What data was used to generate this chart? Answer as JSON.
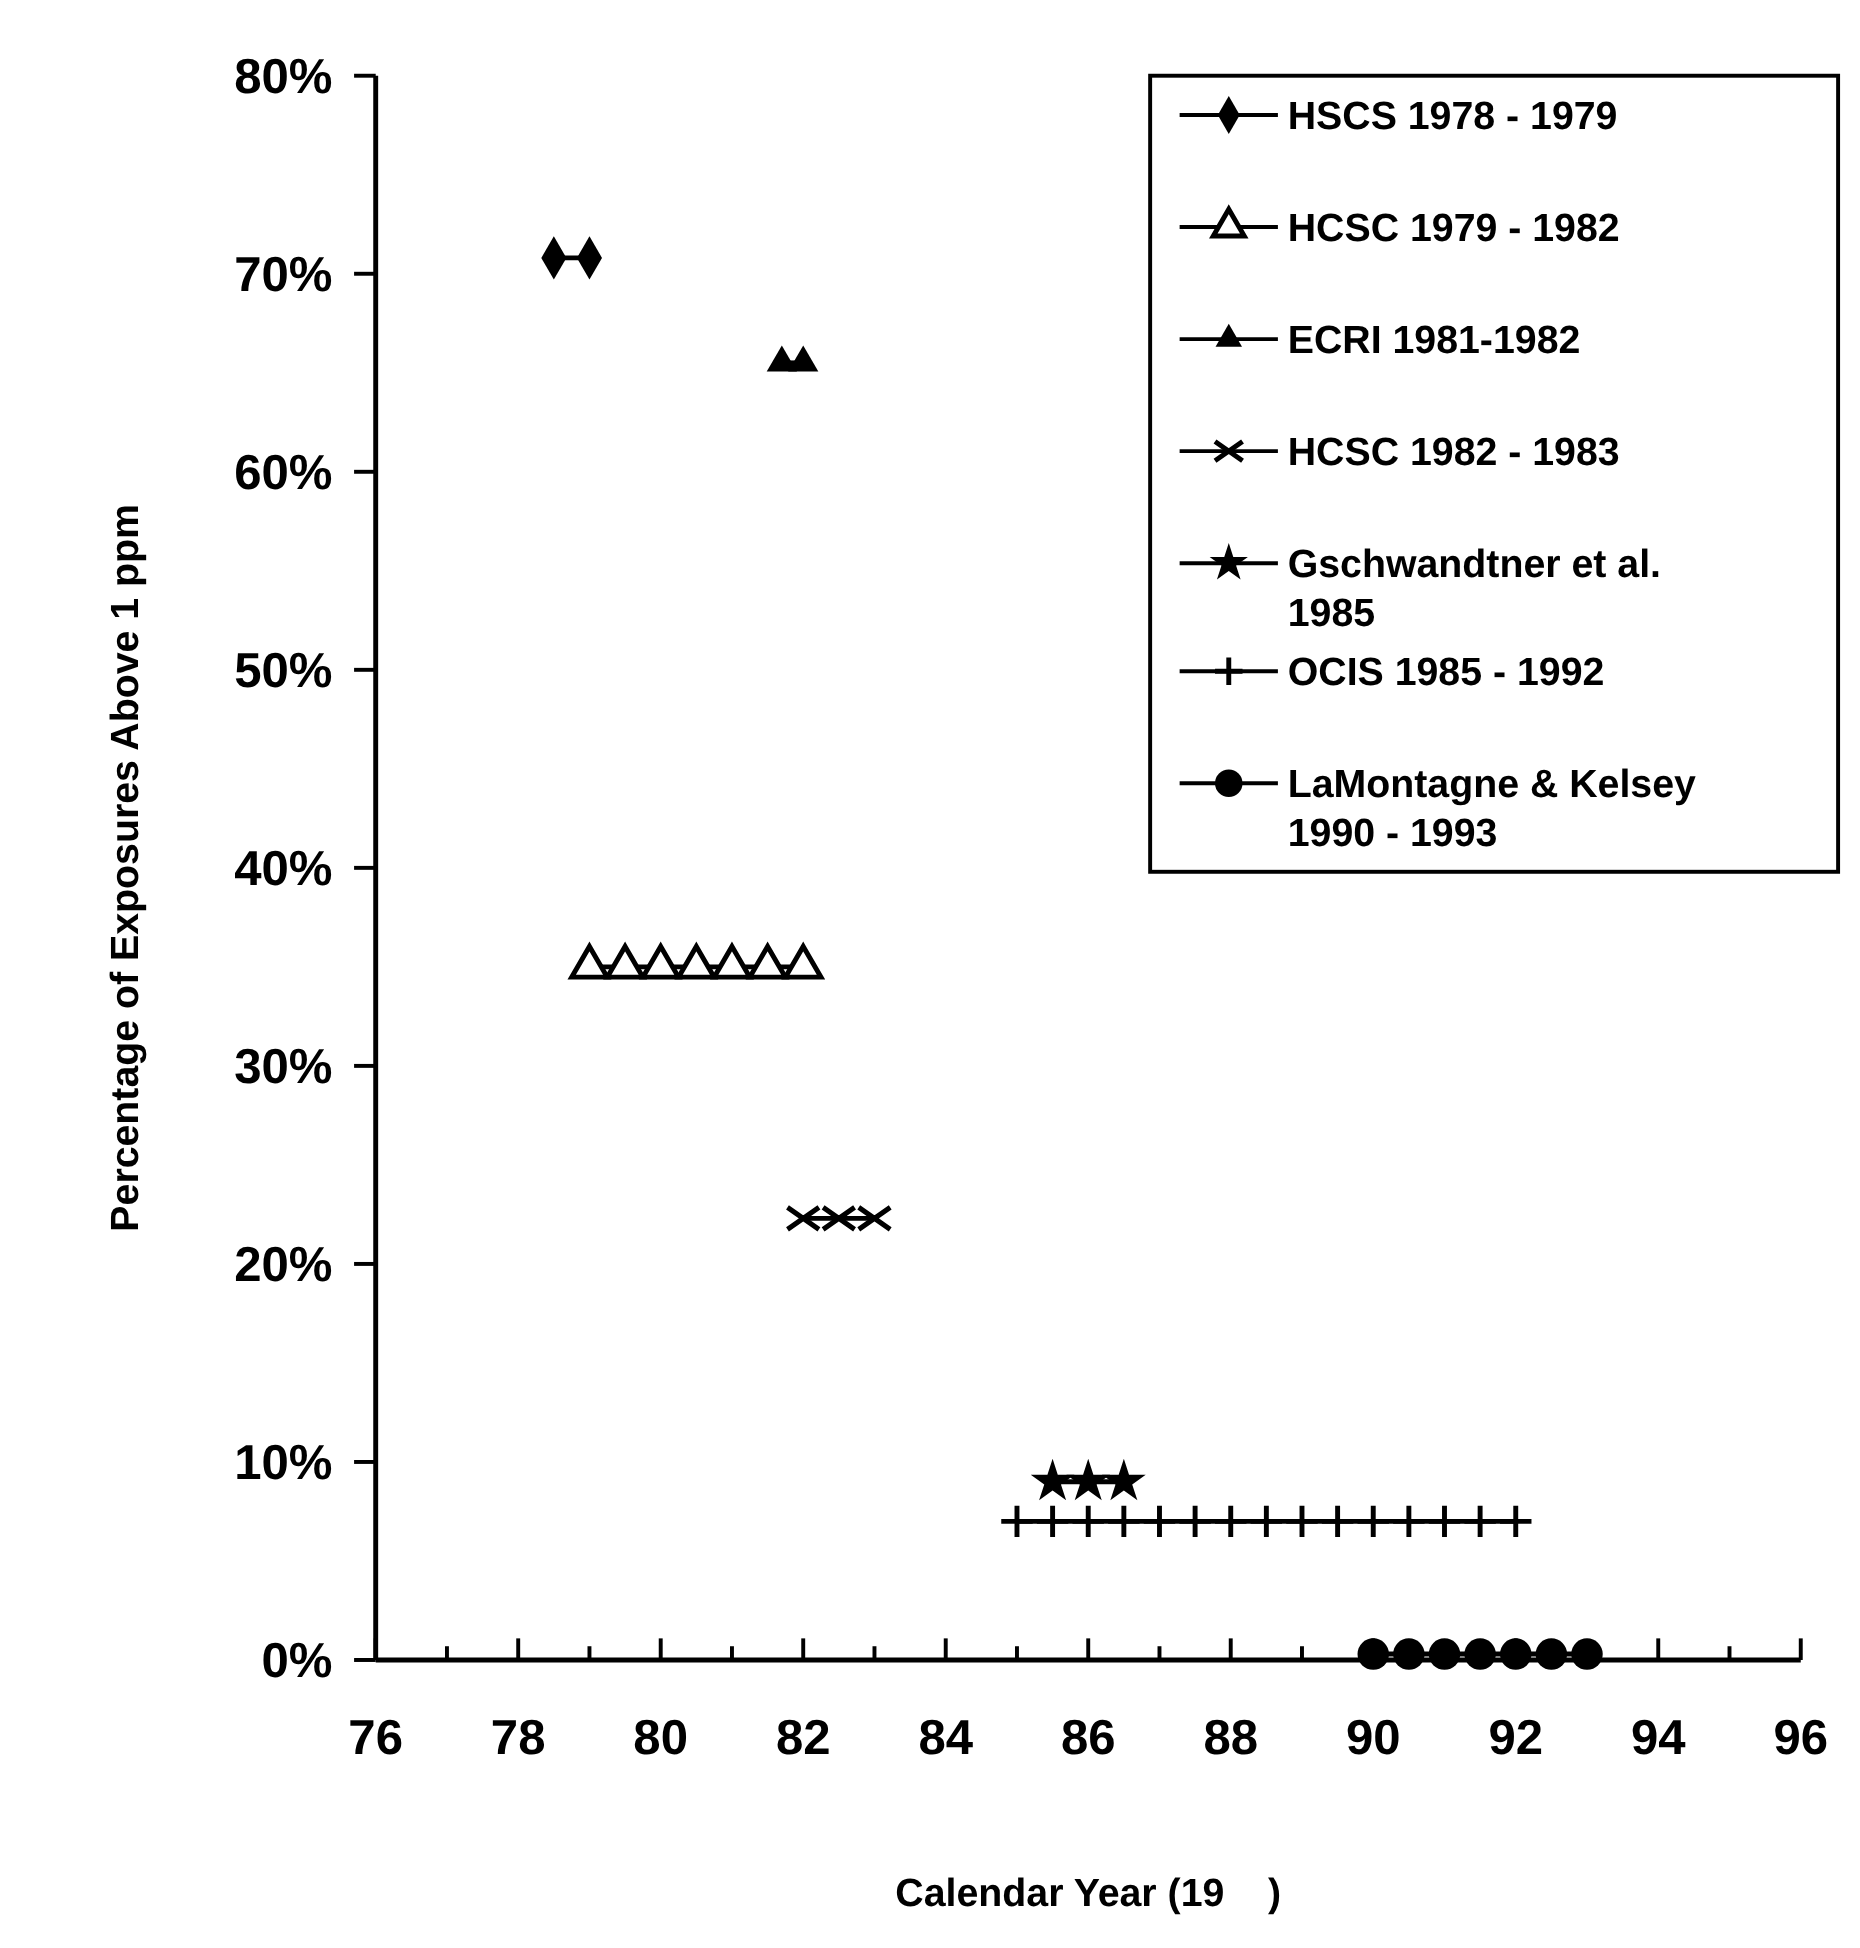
{
  "chart_data": {
    "type": "line",
    "xlabel": "Calendar Year (19    )",
    "ylabel": "Percentage of Exposures Above 1 ppm",
    "xlim": [
      76,
      96
    ],
    "xticks": [
      76,
      {
        "value": 77,
        "label": null
      },
      78,
      {
        "value": 79,
        "label": null
      },
      80,
      {
        "value": 81,
        "label": null
      },
      82,
      {
        "value": 83,
        "label": null
      },
      84,
      {
        "value": 85,
        "label": null
      },
      86,
      {
        "value": 87,
        "label": null
      },
      88,
      {
        "value": 89,
        "label": null
      },
      90,
      {
        "value": 91,
        "label": null
      },
      92,
      {
        "value": 93,
        "label": null
      },
      94,
      {
        "value": 95,
        "label": null
      },
      96
    ],
    "ylim": [
      0,
      80
    ],
    "yticks": [
      {
        "value": 0,
        "label": "0%"
      },
      {
        "value": 10,
        "label": "10%"
      },
      {
        "value": 20,
        "label": "20%"
      },
      {
        "value": 30,
        "label": "30%"
      },
      {
        "value": 40,
        "label": "40%"
      },
      {
        "value": 50,
        "label": "50%"
      },
      {
        "value": 60,
        "label": "60%"
      },
      {
        "value": 70,
        "label": "70%"
      },
      {
        "value": 80,
        "label": "80%"
      }
    ],
    "grid": false,
    "legend": "top right",
    "line_style": "solid",
    "series": [
      {
        "name": "HSCS 1978 - 1979",
        "color": "#000000",
        "marker": "diamond",
        "x": [
          78.5,
          79
        ],
        "values": [
          70.8,
          70.8
        ]
      },
      {
        "name": "HCSC 1979 - 1982",
        "color": "#000000",
        "marker": "triangle-open",
        "x": [
          79,
          79.5,
          80,
          80.5,
          81,
          81.5,
          82
        ],
        "values": [
          35,
          35,
          35,
          35,
          35,
          35,
          35
        ]
      },
      {
        "name": "ECRI  1981-1982",
        "color": "#000000",
        "marker": "triangle",
        "x": [
          81.7,
          82
        ],
        "values": [
          65.5,
          65.5
        ]
      },
      {
        "name": "HCSC 1982 - 1983",
        "color": "#000000",
        "marker": "cross",
        "x": [
          82,
          82.5,
          83
        ],
        "values": [
          22.3,
          22.3,
          22.3
        ]
      },
      {
        "name": "Gschwandtner et al. 1985",
        "color": "#000000",
        "marker": "star",
        "x": [
          85.5,
          86,
          86.5
        ],
        "values": [
          9,
          9,
          9
        ]
      },
      {
        "name": "OCIS 1985 - 1992",
        "color": "#000000",
        "marker": "plus",
        "x": [
          85,
          85.5,
          86,
          86.5,
          87,
          87.5,
          88,
          88.5,
          89,
          89.5,
          90,
          90.5,
          91,
          91.5,
          92
        ],
        "values": [
          7,
          7,
          7,
          7,
          7,
          7,
          7,
          7,
          7,
          7,
          7,
          7,
          7,
          7,
          7
        ]
      },
      {
        "name": "LaMontagne & Kelsey 1990 - 1993",
        "color": "#000000",
        "marker": "circle",
        "x": [
          90,
          90.5,
          91,
          91.5,
          92,
          92.5,
          93
        ],
        "values": [
          0.3,
          0.3,
          0.3,
          0.3,
          0.3,
          0.3,
          0.3
        ]
      }
    ]
  }
}
